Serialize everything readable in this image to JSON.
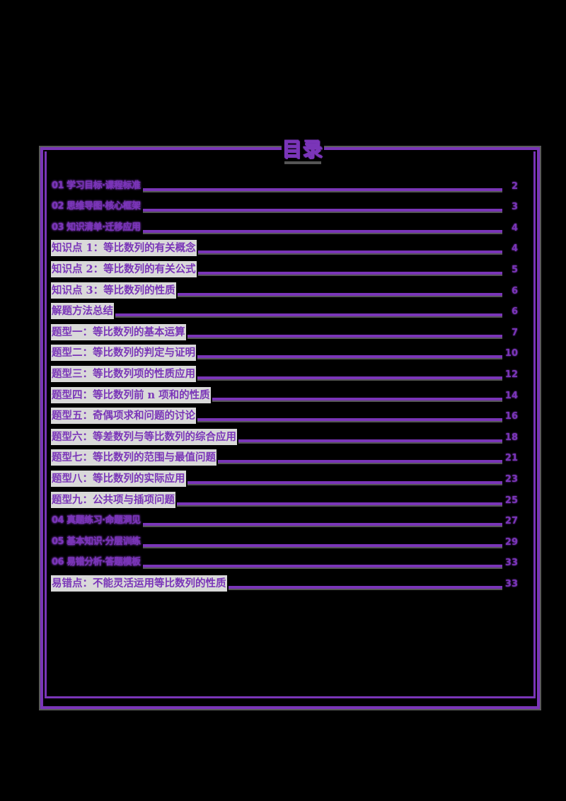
{
  "document": {
    "title": "目录",
    "accent_color": "#7a35b8",
    "highlight_color": "#d9d9d9",
    "toc": [
      {
        "label": "01 学习目标·课程标准",
        "page": "2",
        "type": "heading"
      },
      {
        "label": "02 思维导图·核心框架",
        "page": "3",
        "type": "heading"
      },
      {
        "label": "03 知识清单·迁移应用",
        "page": "4",
        "type": "heading"
      },
      {
        "label": "知识点 1：等比数列的有关概念",
        "page": "4",
        "type": "entry"
      },
      {
        "label": "知识点 2：等比数列的有关公式",
        "page": "5",
        "type": "entry"
      },
      {
        "label": "知识点 3：等比数列的性质",
        "page": "6",
        "type": "entry"
      },
      {
        "label": "解题方法总结",
        "page": "6",
        "type": "entry"
      },
      {
        "label": "题型一：等比数列的基本运算",
        "page": "7",
        "type": "entry"
      },
      {
        "label": "题型二：等比数列的判定与证明",
        "page": "10",
        "type": "entry"
      },
      {
        "label": "题型三：等比数列项的性质应用",
        "page": "12",
        "type": "entry"
      },
      {
        "label": "题型四：等比数列前 n 项和的性质",
        "page": "14",
        "type": "entry"
      },
      {
        "label": "题型五：奇偶项求和问题的讨论",
        "page": "16",
        "type": "entry"
      },
      {
        "label": "题型六：等差数列与等比数列的综合应用",
        "page": "18",
        "type": "entry"
      },
      {
        "label": "题型七：等比数列的范围与最值问题",
        "page": "21",
        "type": "entry"
      },
      {
        "label": "题型八：等比数列的实际应用",
        "page": "23",
        "type": "entry"
      },
      {
        "label": "题型九：公共项与插项问题",
        "page": "25",
        "type": "entry"
      },
      {
        "label": "04 真题练习·命题洞见",
        "page": "27",
        "type": "heading"
      },
      {
        "label": "05 基本知识·分层训练",
        "page": "29",
        "type": "heading"
      },
      {
        "label": "06 易错分析·答题模板",
        "page": "33",
        "type": "heading"
      },
      {
        "label": "易错点：不能灵活运用等比数列的性质",
        "page": "33",
        "type": "entry"
      }
    ]
  }
}
